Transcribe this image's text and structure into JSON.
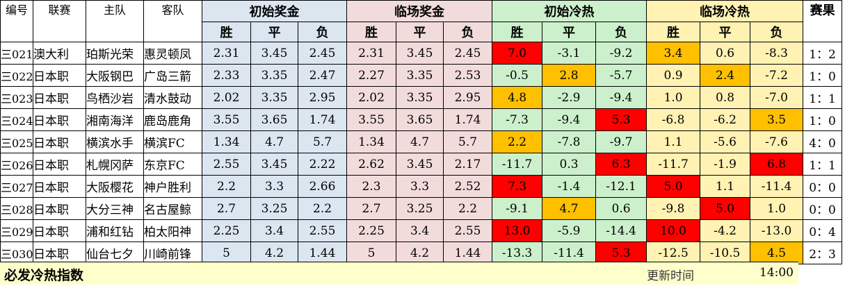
{
  "headers": {
    "code": "编号",
    "league": "联赛",
    "home": "主队",
    "away": "客队",
    "initial_prize": "初始奖金",
    "live_prize": "临场奖金",
    "initial_heat": "初始冷热",
    "live_heat": "临场冷热",
    "result": "赛果",
    "win": "胜",
    "draw": "平",
    "lose": "负"
  },
  "rows": [
    {
      "code": "三021",
      "league": "澳大利",
      "home": "珀斯光荣",
      "away": "惠灵顿凤",
      "ip": [
        "2.31",
        "3.45",
        "2.45"
      ],
      "lp": [
        "2.31",
        "3.45",
        "2.45"
      ],
      "ih": [
        "7.0",
        "-3.1",
        "-9.2"
      ],
      "lh": [
        "3.4",
        "0.6",
        "-8.3"
      ],
      "result": "1：2"
    },
    {
      "code": "三022",
      "league": "日本职",
      "home": "大阪钢巴",
      "away": "广岛三箭",
      "ip": [
        "2.33",
        "3.35",
        "2.47"
      ],
      "lp": [
        "2.27",
        "3.35",
        "2.53"
      ],
      "ih": [
        "-0.5",
        "2.8",
        "-5.7"
      ],
      "lh": [
        "0.9",
        "2.4",
        "-7.2"
      ],
      "result": "1：0"
    },
    {
      "code": "三023",
      "league": "日本职",
      "home": "鸟栖沙岩",
      "away": "清水鼓动",
      "ip": [
        "2.02",
        "3.35",
        "2.95"
      ],
      "lp": [
        "2.02",
        "3.35",
        "2.95"
      ],
      "ih": [
        "4.8",
        "-2.9",
        "-9.4"
      ],
      "lh": [
        "1.0",
        "0.8",
        "-7.0"
      ],
      "result": "1：1"
    },
    {
      "code": "三024",
      "league": "日本职",
      "home": "湘南海洋",
      "away": "鹿岛鹿角",
      "ip": [
        "3.55",
        "3.65",
        "1.74"
      ],
      "lp": [
        "3.55",
        "3.65",
        "1.74"
      ],
      "ih": [
        "-7.3",
        "-9.4",
        "5.3"
      ],
      "lh": [
        "-6.8",
        "-6.2",
        "3.5"
      ],
      "result": "1：0"
    },
    {
      "code": "三025",
      "league": "日本职",
      "home": "横滨水手",
      "away": "横滨FC",
      "ip": [
        "1.34",
        "4.7",
        "5.7"
      ],
      "lp": [
        "1.34",
        "4.7",
        "5.7"
      ],
      "ih": [
        "2.2",
        "-7.8",
        "-9.7"
      ],
      "lh": [
        "1.1",
        "-5.6",
        "-7.6"
      ],
      "result": "4：0"
    },
    {
      "code": "三026",
      "league": "日本职",
      "home": "札幌冈萨",
      "away": "东京FC",
      "ip": [
        "2.55",
        "3.45",
        "2.22"
      ],
      "lp": [
        "2.62",
        "3.45",
        "2.17"
      ],
      "ih": [
        "-11.7",
        "0.3",
        "6.3"
      ],
      "lh": [
        "-11.7",
        "-1.9",
        "6.8"
      ],
      "result": "1：1"
    },
    {
      "code": "三027",
      "league": "日本职",
      "home": "大阪樱花",
      "away": "神户胜利",
      "ip": [
        "2.2",
        "3.3",
        "2.66"
      ],
      "lp": [
        "2.3",
        "3.3",
        "2.52"
      ],
      "ih": [
        "7.3",
        "-1.4",
        "-12.1"
      ],
      "lh": [
        "5.0",
        "1.1",
        "-11.4"
      ],
      "result": "0：0"
    },
    {
      "code": "三028",
      "league": "日本职",
      "home": "大分三神",
      "away": "名古屋鲸",
      "ip": [
        "2.7",
        "3.25",
        "2.2"
      ],
      "lp": [
        "2.7",
        "3.25",
        "2.2"
      ],
      "ih": [
        "-9.1",
        "4.7",
        "0.6"
      ],
      "lh": [
        "-9.8",
        "5.0",
        "1.0"
      ],
      "result": "0：0"
    },
    {
      "code": "三029",
      "league": "日本职",
      "home": "浦和红钻",
      "away": "柏太阳神",
      "ip": [
        "2.25",
        "3.4",
        "2.55"
      ],
      "lp": [
        "2.25",
        "3.4",
        "2.55"
      ],
      "ih": [
        "13.0",
        "-5.9",
        "-14.4"
      ],
      "lh": [
        "10.0",
        "-4.2",
        "-13.0"
      ],
      "result": "0：4"
    },
    {
      "code": "三030",
      "league": "日本职",
      "home": "仙台七夕",
      "away": "川崎前锋",
      "ip": [
        "5",
        "4.2",
        "1.44"
      ],
      "lp": [
        "5",
        "4.2",
        "1.44"
      ],
      "ih": [
        "-13.3",
        "-11.4",
        "5.3"
      ],
      "lh": [
        "-12.5",
        "-10.5",
        "4.5"
      ],
      "result": "2：3"
    }
  ],
  "highlights": {
    "ih": [
      [
        "red",
        "green",
        "green"
      ],
      [
        "green",
        "orange",
        "green"
      ],
      [
        "orange",
        "green",
        "green"
      ],
      [
        "green",
        "green",
        "red"
      ],
      [
        "orange",
        "green",
        "green"
      ],
      [
        "green",
        "green",
        "red"
      ],
      [
        "red",
        "green",
        "green"
      ],
      [
        "green",
        "orange",
        "green"
      ],
      [
        "red",
        "green",
        "green"
      ],
      [
        "green",
        "green",
        "red"
      ]
    ],
    "lh": [
      [
        "orange",
        "yellow",
        "yellow"
      ],
      [
        "yellow",
        "orange",
        "yellow"
      ],
      [
        "yellow",
        "yellow",
        "yellow"
      ],
      [
        "yellow",
        "yellow",
        "orange"
      ],
      [
        "yellow",
        "yellow",
        "yellow"
      ],
      [
        "yellow",
        "yellow",
        "red"
      ],
      [
        "red",
        "yellow",
        "yellow"
      ],
      [
        "yellow",
        "red",
        "yellow"
      ],
      [
        "red",
        "yellow",
        "yellow"
      ],
      [
        "yellow",
        "yellow",
        "orange"
      ]
    ]
  },
  "colors": {
    "initial_prize_bg": "#dce6f1",
    "live_prize_bg": "#f2dcdb",
    "initial_heat_bg": "#ccf0cc",
    "live_heat_bg": "#fff2b3",
    "hot_red": "#ff0000",
    "warm_orange": "#ffc000",
    "footer_bg": "#ffffcc"
  },
  "footer": {
    "title": "必发冷热指数",
    "update_label": "更新时间",
    "update_time": "14:00"
  }
}
